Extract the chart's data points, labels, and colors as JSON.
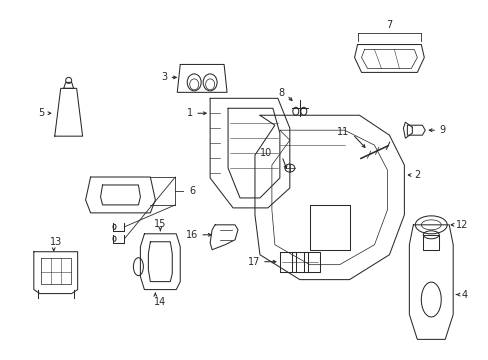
{
  "bg_color": "#ffffff",
  "line_color": "#2a2a2a",
  "figsize": [
    4.89,
    3.6
  ],
  "dpi": 100,
  "lw": 0.75,
  "fs": 7.0
}
